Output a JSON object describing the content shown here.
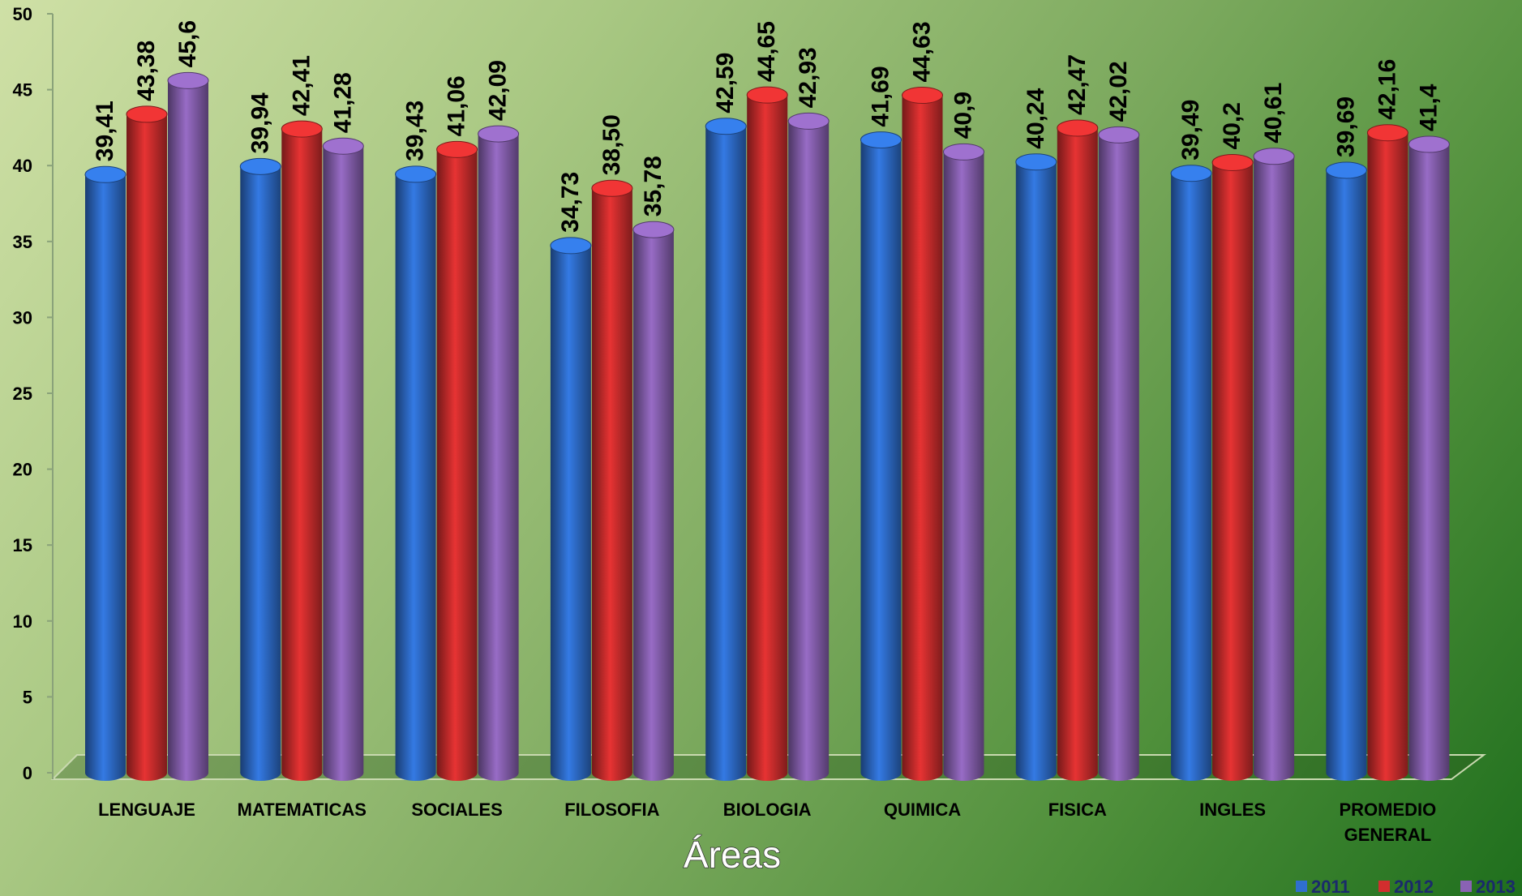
{
  "chart_data": {
    "type": "bar",
    "title": "",
    "xlabel": "Áreas",
    "ylabel": "",
    "ylim": [
      0,
      50
    ],
    "yticks": [
      "0",
      "5",
      "10",
      "15",
      "20",
      "25",
      "30",
      "35",
      "40",
      "45",
      "50"
    ],
    "categories": [
      "LENGUAJE",
      "MATEMATICAS",
      "SOCIALES",
      "FILOSOFIA",
      "BIOLOGIA",
      "QUIMICA",
      "FISICA",
      "INGLES",
      "PROMEDIO GENERAL"
    ],
    "category_lines": [
      [
        "LENGUAJE"
      ],
      [
        "MATEMATICAS"
      ],
      [
        "SOCIALES"
      ],
      [
        "FILOSOFIA"
      ],
      [
        "BIOLOGIA"
      ],
      [
        "QUIMICA"
      ],
      [
        "FISICA"
      ],
      [
        "INGLES"
      ],
      [
        "PROMEDIO",
        "GENERAL"
      ]
    ],
    "series": [
      {
        "name": "2011",
        "color": "#2f6fcf",
        "values": [
          39.41,
          39.94,
          39.43,
          34.73,
          42.59,
          41.69,
          40.24,
          39.49,
          39.69
        ],
        "labels": [
          "39,41",
          "39,94",
          "39,43",
          "34,73",
          "42,59",
          "41,69",
          "40,24",
          "39,49",
          "39,69"
        ]
      },
      {
        "name": "2012",
        "color": "#d22e2e",
        "values": [
          43.38,
          42.41,
          41.06,
          38.5,
          44.65,
          44.63,
          42.47,
          40.2,
          42.16
        ],
        "labels": [
          "43,38",
          "42,41",
          "41,06",
          "38,50",
          "44,65",
          "44,63",
          "42,47",
          "40,2",
          "42,16"
        ]
      },
      {
        "name": "2013",
        "color": "#8a62b4",
        "values": [
          45.6,
          41.28,
          42.09,
          35.78,
          42.93,
          40.9,
          42.02,
          40.61,
          41.4
        ],
        "labels": [
          "45,6",
          "41,28",
          "42,09",
          "35,78",
          "42,93",
          "40,9",
          "42,02",
          "40,61",
          "41,4"
        ]
      }
    ],
    "legend_position": "bottom-right",
    "grid": false
  }
}
